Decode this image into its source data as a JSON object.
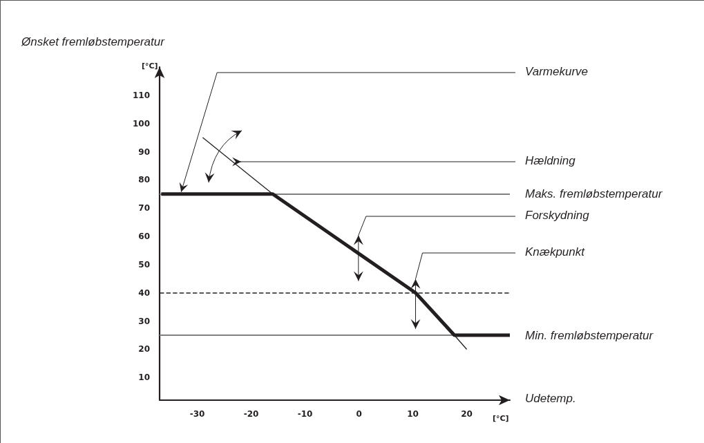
{
  "chart_data": {
    "type": "line",
    "ylabel": "Ønsket fremløbstemperatur",
    "xlabel": "Udetemp.",
    "series": [
      {
        "color": "#231f20",
        "x": [
          -36.7,
          -16,
          10.5,
          17.7,
          28
        ],
        "values": [
          75,
          75,
          40,
          25,
          25
        ]
      },
      {
        "color": "#231f20",
        "x": [
          -29,
          -16,
          0,
          17.7,
          20
        ],
        "values": [
          95,
          75,
          null,
          25,
          20
        ]
      }
    ],
    "xlim": [
      -37,
      28
    ],
    "ylim": [
      2,
      120
    ],
    "xticks": [
      -30,
      -20,
      -10,
      0,
      10,
      20
    ],
    "yticks": [
      10,
      20,
      30,
      40,
      50,
      60,
      70,
      80,
      90,
      100,
      110
    ],
    "grid": false,
    "marker": "none",
    "line_style": "solid",
    "ref_lines": [
      {
        "axis": "y",
        "value": 75,
        "label": "Maks. fremløbstemperatur",
        "color": "#808080"
      },
      {
        "axis": "y",
        "value": 40,
        "color": "#231f20",
        "line_style": "dashed"
      },
      {
        "axis": "y",
        "value": 25,
        "label": "Min. fremløbstemperatur",
        "color": "#808080"
      }
    ],
    "annotations": [
      {
        "text": "Varmekurve",
        "x": -33,
        "y": 75
      },
      {
        "text": "Hældning",
        "x": -22,
        "y": 86
      },
      "Forskydning",
      "Knækpunkt",
      "[°C]",
      "[°C]"
    ]
  }
}
